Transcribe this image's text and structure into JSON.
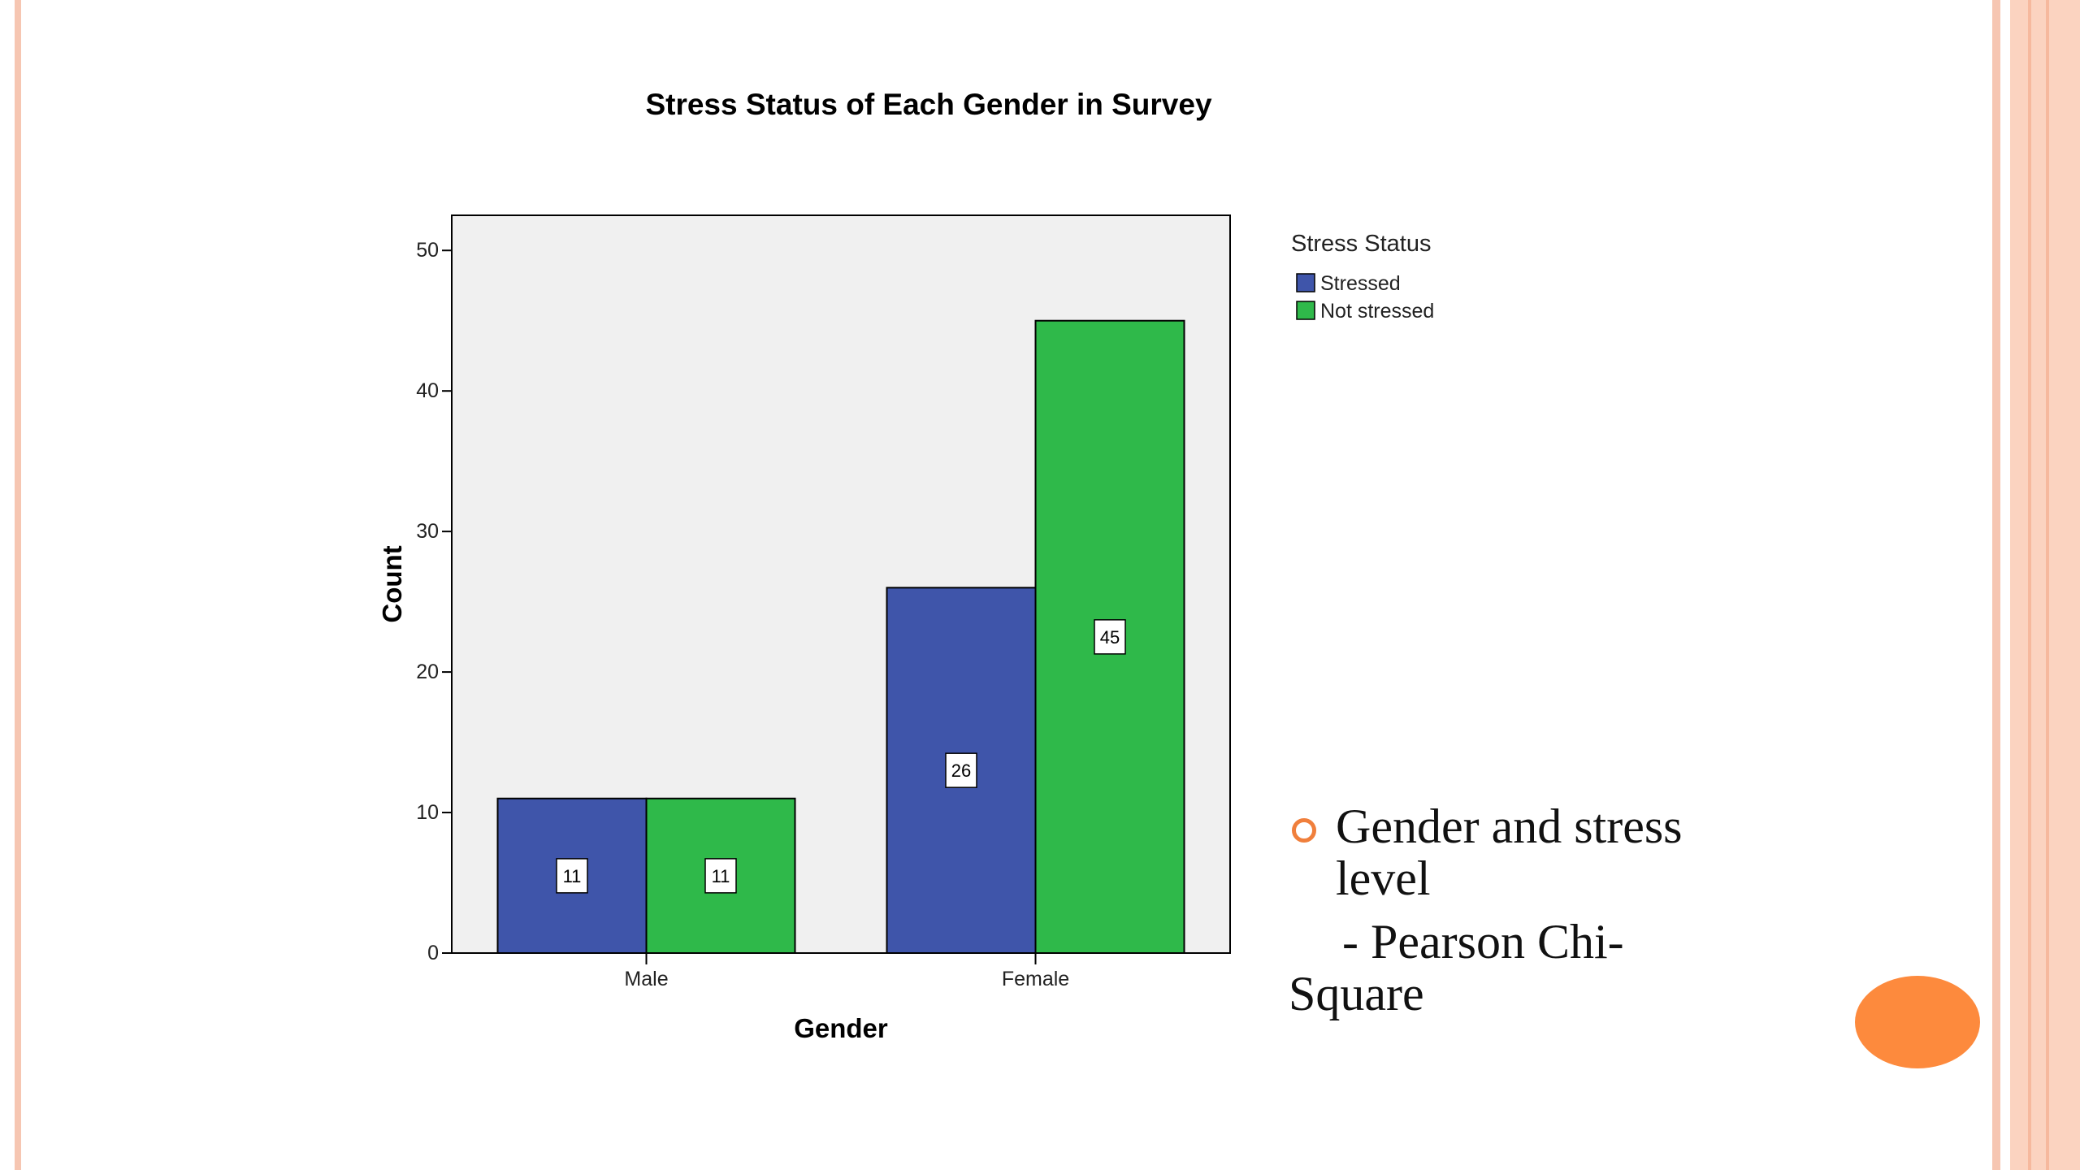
{
  "chart_data": {
    "type": "bar",
    "title": "Stress Status of Each Gender in Survey",
    "xlabel": "Gender",
    "ylabel": "Count",
    "categories": [
      "Male",
      "Female"
    ],
    "series": [
      {
        "name": "Stressed",
        "values": [
          11,
          26
        ],
        "color": "#3f55aa"
      },
      {
        "name": "Not stressed",
        "values": [
          11,
          45
        ],
        "color": "#2fb94a"
      }
    ],
    "ylim": [
      0,
      52.5
    ],
    "yticks": [
      0,
      10,
      20,
      30,
      40,
      50
    ],
    "legend": {
      "title": "Stress Status",
      "position": "right"
    },
    "plot_background": "#f0f0f0",
    "grid": false,
    "data_labels": true
  },
  "slide": {
    "bullet_text": "Gender and stress level",
    "sub_text": "- Pearson Chi-Square",
    "accent_color": "#fd8a3d"
  }
}
